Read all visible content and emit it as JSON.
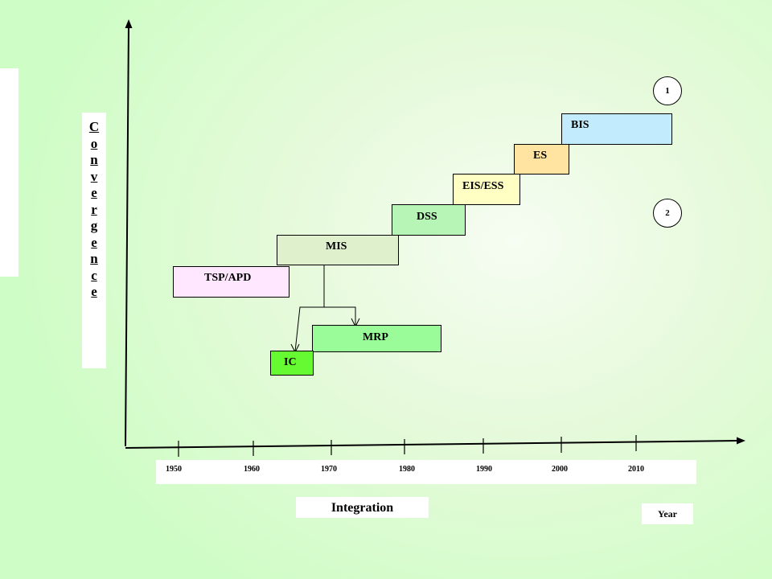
{
  "axes": {
    "y_label_letters": [
      "C",
      "o",
      "n",
      "v",
      "e",
      "r",
      "g",
      "e",
      "n",
      "c",
      "e"
    ],
    "x_title": "Integration",
    "x_unit": "Year",
    "years": [
      "1950",
      "1960",
      "1970",
      "1980",
      "1990",
      "2000",
      "2010"
    ]
  },
  "stages": [
    {
      "key": "tsp",
      "label": "TSP/APD",
      "color": "#ffe8ff"
    },
    {
      "key": "mis",
      "label": "MIS",
      "color": "#dff0cd"
    },
    {
      "key": "dss",
      "label": "DSS",
      "color": "#b6f5b6"
    },
    {
      "key": "eis",
      "label": "EIS/ESS",
      "color": "#ffffc4"
    },
    {
      "key": "es",
      "label": "ES",
      "color": "#ffe3a0"
    },
    {
      "key": "bis",
      "label": "BIS",
      "color": "#c2ecfd"
    },
    {
      "key": "mrp",
      "label": "MRP",
      "color": "#99fc99"
    },
    {
      "key": "ic",
      "label": "IC",
      "color": "#66fa33"
    }
  ],
  "markers": [
    "1",
    "2"
  ]
}
